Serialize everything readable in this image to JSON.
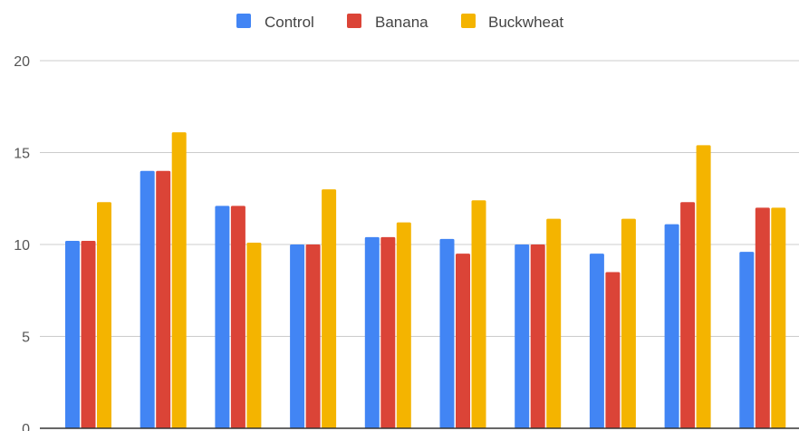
{
  "chart_data": {
    "type": "bar",
    "categories": [
      "",
      "",
      "",
      "",
      "",
      "",
      "",
      "",
      "",
      ""
    ],
    "series": [
      {
        "name": "Control",
        "color": "#4285F4",
        "values": [
          10.2,
          14.0,
          12.1,
          10.0,
          10.4,
          10.3,
          10.0,
          9.5,
          11.1,
          9.6
        ]
      },
      {
        "name": "Banana",
        "color": "#DB4437",
        "values": [
          10.2,
          14.0,
          12.1,
          10.0,
          10.4,
          9.5,
          10.0,
          8.5,
          12.3,
          12.0
        ]
      },
      {
        "name": "Buckwheat",
        "color": "#F4B400",
        "values": [
          12.3,
          16.1,
          10.1,
          13.0,
          11.2,
          12.4,
          11.4,
          11.4,
          15.4,
          12.0
        ]
      }
    ],
    "title": "",
    "xlabel": "",
    "ylabel": "",
    "ylim": [
      0,
      20
    ],
    "yticks": [
      "0",
      "5",
      "10",
      "15",
      "20"
    ],
    "grid": true,
    "legend_position": "top-center"
  }
}
